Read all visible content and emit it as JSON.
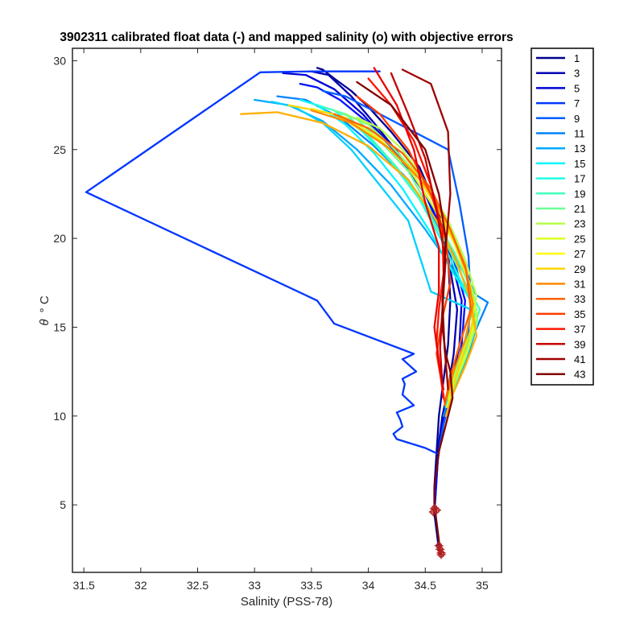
{
  "chart_data": {
    "type": "line",
    "title": "3902311 calibrated float data (-) and mapped salinity (o) with objective errors",
    "xlabel": "Salinity (PSS-78)",
    "ylabel_symbol": "θ",
    "ylabel_unit": "° C",
    "xlim": [
      31.4,
      35.17
    ],
    "ylim": [
      1.2,
      30.7
    ],
    "xticks": [
      "31.5",
      "32",
      "32.5",
      "33",
      "33.5",
      "34",
      "34.5",
      "35"
    ],
    "xtick_values": [
      31.5,
      32,
      32.5,
      33,
      33.5,
      34,
      34.5,
      35
    ],
    "yticks": [
      "5",
      "10",
      "15",
      "20",
      "25",
      "30"
    ],
    "ytick_values": [
      5,
      10,
      15,
      20,
      25,
      30
    ],
    "grid": false,
    "legend_position": "outside-top-right",
    "legend_entries": [
      "1",
      "3",
      "5",
      "7",
      "9",
      "11",
      "13",
      "15",
      "17",
      "19",
      "21",
      "23",
      "25",
      "27",
      "29",
      "31",
      "33",
      "35",
      "37",
      "39",
      "41",
      "43"
    ],
    "colors": [
      "#00008f",
      "#0000b3",
      "#0000d6",
      "#0010ff",
      "#0036ff",
      "#005cff",
      "#0083ff",
      "#00a9ff",
      "#00d0ff",
      "#00f6ff",
      "#1dffe2",
      "#44ffbb",
      "#6aff95",
      "#90ff6f",
      "#b7ff48",
      "#ddff22",
      "#fffb00",
      "#ffd500",
      "#ffae00",
      "#ff8800",
      "#ff6100",
      "#ff3b00",
      "#ff1400",
      "#ec0000",
      "#c60000",
      "#9f0000",
      "#800000"
    ],
    "series": [
      {
        "color": "#00008f",
        "x": [
          33.55,
          33.6,
          33.7,
          33.85,
          34.0,
          34.2,
          34.45,
          34.62,
          34.7,
          34.72,
          34.7,
          34.66,
          34.62,
          34.6,
          34.59,
          34.58,
          34.58,
          34.58,
          34.59,
          34.6,
          34.61,
          34.62,
          34.63
        ],
        "y": [
          29.6,
          29.5,
          29.0,
          28.3,
          27.4,
          26.0,
          24.0,
          21.5,
          19.0,
          16.5,
          14.0,
          12.0,
          10.0,
          8.0,
          7.0,
          6.0,
          5.0,
          4.5,
          4.0,
          3.5,
          3.0,
          2.5,
          2.2
        ]
      },
      {
        "color": "#0000b3",
        "x": [
          33.5,
          33.65,
          33.85,
          34.05,
          34.3,
          34.55,
          34.7,
          34.78,
          34.75,
          34.7,
          34.65,
          34.62,
          34.6,
          34.59,
          34.58,
          34.58
        ],
        "y": [
          29.4,
          29.2,
          28.0,
          26.5,
          24.5,
          22.0,
          19.0,
          16.0,
          13.5,
          11.5,
          10.0,
          8.5,
          7.0,
          6.0,
          5.0,
          4.5
        ]
      },
      {
        "color": "#0000d6",
        "x": [
          33.25,
          33.45,
          33.7,
          33.95,
          34.2,
          34.5,
          34.7,
          34.82,
          34.8,
          34.74,
          34.68,
          34.64,
          34.61,
          34.6,
          34.59,
          34.58
        ],
        "y": [
          29.3,
          29.2,
          28.4,
          27.0,
          25.2,
          22.5,
          19.5,
          16.5,
          14.0,
          12.0,
          10.5,
          9.0,
          7.5,
          6.5,
          5.5,
          4.5
        ]
      },
      {
        "color": "#0010ff",
        "x": [
          33.4,
          33.55,
          33.75,
          34.0,
          34.25,
          34.5,
          34.72,
          34.85,
          34.82,
          34.76,
          34.69,
          34.64,
          34.61,
          34.6,
          34.59
        ],
        "y": [
          28.7,
          28.5,
          27.8,
          26.5,
          24.8,
          22.5,
          19.5,
          16.5,
          14.0,
          12.0,
          10.5,
          9.0,
          7.5,
          6.5,
          5.5
        ]
      },
      {
        "color": "#0036ff",
        "x": [
          34.1,
          33.5,
          33.05,
          31.52,
          33.55,
          33.7,
          34.4,
          34.3,
          34.42,
          34.3,
          34.32,
          34.3,
          34.4,
          34.25,
          34.28,
          34.3,
          34.22,
          34.25,
          34.5,
          34.6
        ],
        "y": [
          29.4,
          29.4,
          29.35,
          22.6,
          16.5,
          15.2,
          13.5,
          13.2,
          12.5,
          12.1,
          11.8,
          11.2,
          10.6,
          10.2,
          9.8,
          9.4,
          9.0,
          8.7,
          8.2,
          7.9
        ]
      },
      {
        "color": "#005cff",
        "x": [
          33.6,
          33.8,
          34.1,
          34.4,
          34.7,
          34.8,
          34.88,
          34.9,
          34.87,
          34.8,
          34.72,
          34.66,
          34.62
        ],
        "y": [
          28.3,
          28.0,
          27.0,
          26.0,
          25.0,
          22.0,
          19.0,
          16.5,
          14.0,
          12.5,
          11.0,
          9.5,
          8.0
        ]
      },
      {
        "color": "#0083ff",
        "x": [
          33.2,
          33.45,
          33.75,
          34.05,
          34.35,
          34.6,
          34.8,
          34.95,
          35.05,
          34.9,
          34.75,
          34.66
        ],
        "y": [
          28.0,
          27.8,
          26.8,
          25.2,
          23.3,
          20.8,
          18.5,
          16.8,
          16.4,
          14.2,
          12.0,
          10.0
        ]
      },
      {
        "color": "#00a9ff",
        "x": [
          33.0,
          33.3,
          33.6,
          33.9,
          34.2,
          34.5,
          34.75,
          34.92,
          34.95,
          34.88,
          34.78,
          34.68
        ],
        "y": [
          27.8,
          27.5,
          26.6,
          25.0,
          23.0,
          20.5,
          18.2,
          16.5,
          15.0,
          13.5,
          12.0,
          10.5
        ]
      },
      {
        "color": "#00d0ff",
        "x": [
          33.15,
          33.35,
          33.6,
          33.85,
          34.1,
          34.35,
          34.55,
          34.9,
          34.85,
          34.75,
          34.68
        ],
        "y": [
          27.7,
          27.4,
          26.5,
          25.0,
          23.0,
          21.0,
          17.0,
          16.0,
          14.0,
          12.0,
          10.5
        ]
      },
      {
        "color": "#00f6ff",
        "x": [
          33.4,
          33.55,
          33.8,
          34.05,
          34.3,
          34.55,
          34.75,
          34.9,
          34.92,
          34.85,
          34.75,
          34.68
        ],
        "y": [
          27.8,
          27.5,
          26.4,
          24.8,
          22.8,
          20.3,
          18.0,
          16.5,
          15.0,
          13.5,
          12.0,
          10.5
        ]
      },
      {
        "color": "#1dffe2",
        "x": [
          33.5,
          33.7,
          33.95,
          34.2,
          34.45,
          34.65,
          34.82,
          34.95,
          34.9,
          34.8,
          34.7
        ],
        "y": [
          27.6,
          27.2,
          26.0,
          24.3,
          22.2,
          19.8,
          17.5,
          16.0,
          14.5,
          12.8,
          11.0
        ]
      },
      {
        "color": "#44ffbb",
        "x": [
          33.6,
          33.8,
          34.0,
          34.25,
          34.5,
          34.7,
          34.85,
          34.98,
          34.9,
          34.78,
          34.69
        ],
        "y": [
          27.4,
          27.0,
          25.8,
          24.0,
          21.8,
          19.5,
          17.5,
          16.0,
          14.5,
          12.8,
          11.0
        ]
      },
      {
        "color": "#6aff95",
        "x": [
          33.7,
          33.9,
          34.1,
          34.35,
          34.55,
          34.75,
          34.9,
          34.95,
          34.85,
          34.74
        ],
        "y": [
          27.2,
          26.7,
          25.5,
          23.8,
          21.5,
          19.3,
          17.2,
          15.5,
          13.5,
          11.5
        ]
      },
      {
        "color": "#90ff6f",
        "x": [
          33.8,
          34.0,
          34.2,
          34.45,
          34.65,
          34.8,
          34.92,
          34.96,
          34.85,
          34.73
        ],
        "y": [
          27.0,
          26.4,
          25.2,
          23.5,
          21.3,
          19.0,
          17.0,
          15.3,
          13.2,
          11.3
        ]
      },
      {
        "color": "#b7ff48",
        "x": [
          33.9,
          34.1,
          34.3,
          34.5,
          34.7,
          34.85,
          34.95,
          34.9,
          34.78,
          34.7
        ],
        "y": [
          26.8,
          26.2,
          25.0,
          23.2,
          21.0,
          18.8,
          16.8,
          14.8,
          12.8,
          11.0
        ]
      },
      {
        "color": "#ddff22",
        "x": [
          33.5,
          33.8,
          34.1,
          34.35,
          34.55,
          34.75,
          34.88,
          34.95,
          34.88,
          34.76,
          34.69
        ],
        "y": [
          27.3,
          26.8,
          25.6,
          24.0,
          22.0,
          19.8,
          17.6,
          15.8,
          13.8,
          12.0,
          10.5
        ]
      },
      {
        "color": "#ffd500",
        "x": [
          33.3,
          33.7,
          34.1,
          34.4,
          34.6,
          34.78,
          34.9,
          34.92,
          34.82,
          34.72
        ],
        "y": [
          27.5,
          27.0,
          25.5,
          23.8,
          21.8,
          19.5,
          17.2,
          15.3,
          13.2,
          11.2
        ]
      },
      {
        "color": "#ffae00",
        "x": [
          32.88,
          33.2,
          33.6,
          34.0,
          34.35,
          34.6,
          34.78,
          34.9,
          34.95,
          34.85,
          34.74,
          34.68
        ],
        "y": [
          27.0,
          27.1,
          26.5,
          25.2,
          23.3,
          21.0,
          18.6,
          16.5,
          14.5,
          12.8,
          11.2,
          10.0
        ]
      },
      {
        "color": "#ff8800",
        "x": [
          33.5,
          33.85,
          34.2,
          34.5,
          34.7,
          34.85,
          34.92,
          34.85,
          34.75,
          34.68
        ],
        "y": [
          27.2,
          26.5,
          25.0,
          23.0,
          20.8,
          18.5,
          16.3,
          14.3,
          12.5,
          10.8
        ]
      },
      {
        "color": "#ff6100",
        "x": [
          33.7,
          34.0,
          34.3,
          34.55,
          34.72,
          34.86,
          34.9,
          34.8,
          34.72,
          34.67
        ],
        "y": [
          27.0,
          26.2,
          24.8,
          22.8,
          20.5,
          18.2,
          16.0,
          14.0,
          12.2,
          10.6
        ]
      },
      {
        "color": "#ff3b00",
        "x": [
          33.9,
          34.1,
          34.35,
          34.55,
          34.68,
          34.72,
          34.65,
          34.6,
          34.64,
          34.67
        ],
        "y": [
          28.0,
          27.0,
          25.0,
          22.5,
          20.0,
          17.5,
          15.5,
          13.5,
          12.0,
          10.8
        ]
      },
      {
        "color": "#ff1400",
        "x": [
          34.0,
          34.2,
          34.4,
          34.55,
          34.65,
          34.66,
          34.62,
          34.6,
          34.63,
          34.66
        ],
        "y": [
          29.0,
          27.5,
          25.5,
          23.0,
          20.5,
          18.0,
          16.0,
          14.2,
          12.5,
          11.0
        ]
      },
      {
        "color": "#ec0000",
        "x": [
          34.05,
          34.25,
          34.4,
          34.5,
          34.62,
          34.62,
          34.58,
          34.62,
          34.66
        ],
        "y": [
          29.6,
          27.5,
          25.0,
          22.0,
          19.5,
          17.0,
          15.0,
          13.0,
          11.5
        ]
      },
      {
        "color": "#c60000",
        "x": [
          34.2,
          34.35,
          34.5,
          34.6,
          34.68,
          34.65,
          34.63,
          34.65
        ],
        "y": [
          29.3,
          27.0,
          24.5,
          21.5,
          18.8,
          16.0,
          13.8,
          11.8
        ]
      },
      {
        "color": "#9f0000",
        "x": [
          34.3,
          34.55,
          34.7,
          34.72,
          34.68,
          34.65,
          34.67,
          34.7
        ],
        "y": [
          29.5,
          28.7,
          26.0,
          22.5,
          19.5,
          16.5,
          13.8,
          11.5
        ]
      },
      {
        "color": "#800000",
        "x": [
          33.9,
          34.2,
          34.5,
          34.62,
          34.68,
          34.66,
          34.65,
          34.68,
          34.72,
          34.74,
          34.7,
          34.66,
          34.62,
          34.6,
          34.58,
          34.58,
          34.58,
          34.59,
          34.6,
          34.61,
          34.62,
          34.63,
          34.64
        ],
        "y": [
          28.8,
          27.5,
          25.0,
          22.5,
          20.0,
          17.5,
          15.0,
          13.5,
          12.5,
          11.0,
          10.0,
          9.0,
          8.0,
          7.0,
          6.0,
          5.5,
          5.0,
          4.5,
          4.0,
          3.5,
          3.0,
          2.5,
          2.2
        ]
      }
    ],
    "mapped_points": {
      "color": "#b22222",
      "x": [
        34.58,
        34.57,
        34.6,
        34.62,
        34.63,
        34.64,
        34.64
      ],
      "y": [
        4.8,
        4.6,
        4.7,
        2.7,
        2.5,
        2.3,
        2.2
      ]
    }
  }
}
